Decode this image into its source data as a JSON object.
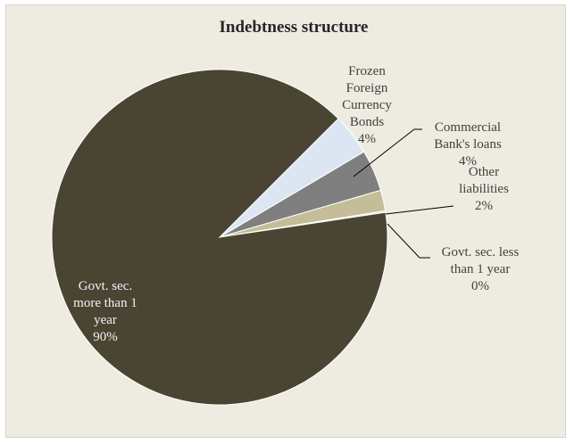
{
  "chart_data": {
    "type": "pie",
    "title": "Indebtness structure",
    "slices": [
      {
        "label_lines": [
          "Frozen",
          "Foreign",
          "Currency",
          "Bonds"
        ],
        "value_label": "4%",
        "value": 4,
        "color": "#dce6f2"
      },
      {
        "label_lines": [
          "Commercial",
          "Bank's loans"
        ],
        "value_label": "4%",
        "value": 4,
        "color": "#7f7f7f"
      },
      {
        "label_lines": [
          "Other",
          "liabilities"
        ],
        "value_label": "2%",
        "value": 2,
        "color": "#c4bd97"
      },
      {
        "label_lines": [
          "Govt. sec. less",
          "than 1 year"
        ],
        "value_label": "0%",
        "value": 0.15,
        "color": "#e6e6e6"
      },
      {
        "label_lines": [
          "Govt. sec.",
          "more than 1",
          "year"
        ],
        "value_label": "90%",
        "value": 90,
        "color": "#4a4433"
      }
    ],
    "legend": "none"
  }
}
